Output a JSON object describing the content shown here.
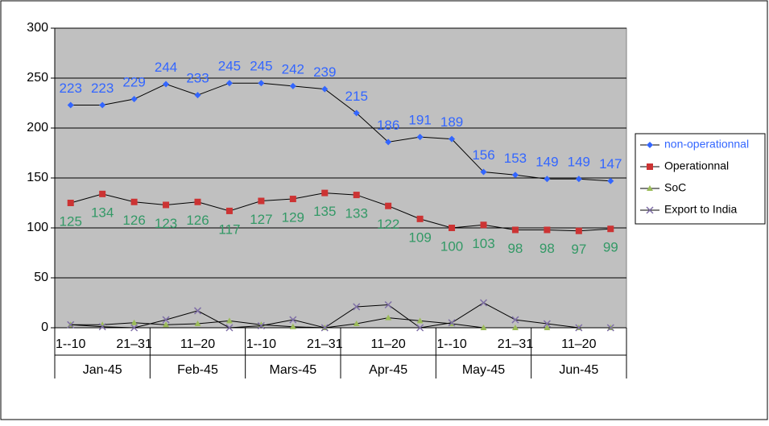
{
  "chart_data": {
    "type": "line",
    "categories": [
      "1--10",
      null,
      "21–31",
      null,
      "11–20",
      null,
      "1--10",
      null,
      "21–31",
      null,
      "11–20",
      null,
      "1--10",
      null,
      "21–31",
      null,
      "11–20",
      null
    ],
    "groups": [
      "Jan-45",
      "Feb-45",
      "Mars-45",
      "Apr-45",
      "May-45",
      "Jun-45"
    ],
    "series": [
      {
        "name": "non-operationnal",
        "color": "#3366ff",
        "marker": "diamond",
        "label_color": "#3366ff",
        "label_position": "above",
        "values": [
          223,
          223,
          229,
          244,
          233,
          245,
          245,
          242,
          239,
          215,
          186,
          191,
          189,
          156,
          153,
          149,
          149,
          147
        ]
      },
      {
        "name": "Operationnal",
        "color": "#cc3333",
        "marker": "square",
        "label_color": "#339966",
        "label_position": "below",
        "values": [
          125,
          134,
          126,
          123,
          126,
          117,
          127,
          129,
          135,
          133,
          122,
          109,
          100,
          103,
          98,
          98,
          97,
          99
        ]
      },
      {
        "name": "SoC",
        "color": "#9bbb59",
        "marker": "triangle",
        "values": [
          3,
          3,
          5,
          3,
          4,
          7,
          3,
          1,
          0,
          4,
          10,
          7,
          4,
          0,
          0,
          0,
          0,
          0
        ]
      },
      {
        "name": "Export to India",
        "color": "#7f6fa6",
        "marker": "cross",
        "values": [
          3,
          1,
          0,
          8,
          17,
          0,
          2,
          8,
          0,
          21,
          23,
          0,
          5,
          25,
          8,
          4,
          0,
          0
        ]
      }
    ],
    "ylim": [
      0,
      300
    ],
    "yticks": [
      0,
      50,
      100,
      150,
      200,
      250,
      300
    ],
    "grid": true,
    "legend": "right"
  }
}
